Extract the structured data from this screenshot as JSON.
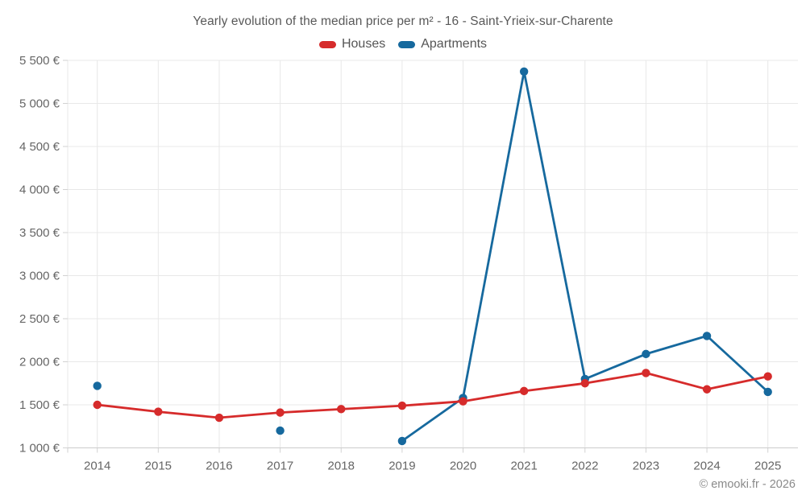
{
  "chart_data": {
    "type": "line",
    "title": "Yearly evolution of the median price per m² - 16 - Saint-Yrieix-sur-Charente",
    "x": [
      "2014",
      "2015",
      "2016",
      "2017",
      "2018",
      "2019",
      "2020",
      "2021",
      "2022",
      "2023",
      "2024",
      "2025"
    ],
    "series": [
      {
        "name": "Houses",
        "color": "#d62b2b",
        "values": [
          1500,
          1420,
          1350,
          1410,
          1450,
          1490,
          1540,
          1660,
          1750,
          1870,
          1680,
          1830
        ]
      },
      {
        "name": "Apartments",
        "color": "#16699e",
        "values": [
          1720,
          null,
          null,
          1200,
          null,
          1080,
          1580,
          5370,
          1800,
          2090,
          2300,
          1650
        ]
      }
    ],
    "ylim": [
      1000,
      5500
    ],
    "ytick_step": 500,
    "y_unit": "€",
    "grid": true,
    "legend_position": "top",
    "colors": {
      "grid": "#e8e8e8",
      "axis": "#cccccc",
      "tick": "#d2d2d2",
      "axis_text": "#666666",
      "title_text": "#595959",
      "legend_text": "#555555",
      "copyright_text": "#8a8a8a"
    }
  },
  "footer": {
    "copyright": "© emooki.fr - 2026"
  }
}
